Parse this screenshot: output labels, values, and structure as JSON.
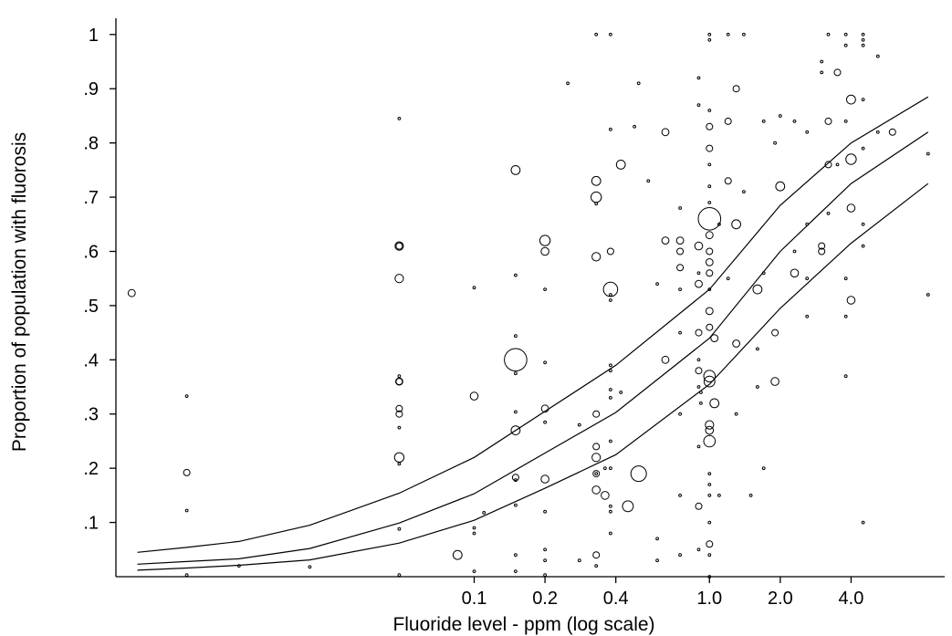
{
  "chart_data": {
    "type": "scatter",
    "title": "",
    "xlabel": "Fluoride level - ppm (log scale)",
    "ylabel": "Proportion of population with fluorosis",
    "x_scale": "log",
    "xlim": [
      0.003,
      10
    ],
    "ylim": [
      0,
      1.03
    ],
    "x_ticks": [
      {
        "value": 0.1,
        "label": "0.1"
      },
      {
        "value": 0.2,
        "label": "0.2"
      },
      {
        "value": 0.4,
        "label": "0.4"
      },
      {
        "value": 1.0,
        "label": "1.0"
      },
      {
        "value": 2.0,
        "label": "2.0"
      },
      {
        "value": 4.0,
        "label": "4.0"
      }
    ],
    "y_ticks": [
      {
        "value": 0.1,
        "label": ".1"
      },
      {
        "value": 0.2,
        "label": ".2"
      },
      {
        "value": 0.3,
        "label": ".3"
      },
      {
        "value": 0.4,
        "label": ".4"
      },
      {
        "value": 0.5,
        "label": ".5"
      },
      {
        "value": 0.6,
        "label": ".6"
      },
      {
        "value": 0.7,
        "label": ".7"
      },
      {
        "value": 0.8,
        "label": ".8"
      },
      {
        "value": 0.9,
        "label": ".9"
      },
      {
        "value": 1.0,
        "label": "1"
      }
    ],
    "grid": false,
    "marker_style": "hollow circles, area proportional to weight",
    "points": [
      {
        "x": 0.0035,
        "y": 0.523,
        "w": 3
      },
      {
        "x": 0.006,
        "y": 0.333,
        "w": 1
      },
      {
        "x": 0.006,
        "y": 0.192,
        "w": 2
      },
      {
        "x": 0.006,
        "y": 0.122,
        "w": 1
      },
      {
        "x": 0.006,
        "y": 0.003,
        "w": 1
      },
      {
        "x": 0.01,
        "y": 0.02,
        "w": 1
      },
      {
        "x": 0.02,
        "y": 0.018,
        "w": 1
      },
      {
        "x": 0.048,
        "y": 0.845,
        "w": 1
      },
      {
        "x": 0.048,
        "y": 0.61,
        "w": 5
      },
      {
        "x": 0.048,
        "y": 0.61,
        "w": 2
      },
      {
        "x": 0.048,
        "y": 0.55,
        "w": 5
      },
      {
        "x": 0.048,
        "y": 0.37,
        "w": 1
      },
      {
        "x": 0.048,
        "y": 0.36,
        "w": 3
      },
      {
        "x": 0.048,
        "y": 0.36,
        "w": 2
      },
      {
        "x": 0.048,
        "y": 0.31,
        "w": 2
      },
      {
        "x": 0.048,
        "y": 0.3,
        "w": 2
      },
      {
        "x": 0.048,
        "y": 0.275,
        "w": 1
      },
      {
        "x": 0.048,
        "y": 0.22,
        "w": 7
      },
      {
        "x": 0.048,
        "y": 0.208,
        "w": 1
      },
      {
        "x": 0.048,
        "y": 0.088,
        "w": 1
      },
      {
        "x": 0.048,
        "y": 0.003,
        "w": 1
      },
      {
        "x": 0.085,
        "y": 0.04,
        "w": 6
      },
      {
        "x": 0.1,
        "y": 0.533,
        "w": 1
      },
      {
        "x": 0.1,
        "y": 0.333,
        "w": 4
      },
      {
        "x": 0.1,
        "y": 0.09,
        "w": 1
      },
      {
        "x": 0.1,
        "y": 0.08,
        "w": 1
      },
      {
        "x": 0.1,
        "y": 0.01,
        "w": 1
      },
      {
        "x": 0.11,
        "y": 0.118,
        "w": 1
      },
      {
        "x": 0.15,
        "y": 0.75,
        "w": 6
      },
      {
        "x": 0.15,
        "y": 0.556,
        "w": 1
      },
      {
        "x": 0.15,
        "y": 0.444,
        "w": 1
      },
      {
        "x": 0.15,
        "y": 0.4,
        "w": 60
      },
      {
        "x": 0.15,
        "y": 0.375,
        "w": 1
      },
      {
        "x": 0.15,
        "y": 0.304,
        "w": 1
      },
      {
        "x": 0.15,
        "y": 0.27,
        "w": 6
      },
      {
        "x": 0.15,
        "y": 0.183,
        "w": 2
      },
      {
        "x": 0.15,
        "y": 0.178,
        "w": 1
      },
      {
        "x": 0.15,
        "y": 0.132,
        "w": 1
      },
      {
        "x": 0.15,
        "y": 0.04,
        "w": 1
      },
      {
        "x": 0.15,
        "y": 0.01,
        "w": 1
      },
      {
        "x": 0.2,
        "y": 0.62,
        "w": 9
      },
      {
        "x": 0.2,
        "y": 0.6,
        "w": 4
      },
      {
        "x": 0.2,
        "y": 0.53,
        "w": 1
      },
      {
        "x": 0.2,
        "y": 0.395,
        "w": 1
      },
      {
        "x": 0.2,
        "y": 0.31,
        "w": 3
      },
      {
        "x": 0.2,
        "y": 0.285,
        "w": 1
      },
      {
        "x": 0.2,
        "y": 0.18,
        "w": 4
      },
      {
        "x": 0.2,
        "y": 0.12,
        "w": 1
      },
      {
        "x": 0.2,
        "y": 0.05,
        "w": 1
      },
      {
        "x": 0.2,
        "y": 0.03,
        "w": 1
      },
      {
        "x": 0.2,
        "y": 0.003,
        "w": 1
      },
      {
        "x": 0.25,
        "y": 0.91,
        "w": 1
      },
      {
        "x": 0.28,
        "y": 0.28,
        "w": 1
      },
      {
        "x": 0.28,
        "y": 0.03,
        "w": 1
      },
      {
        "x": 0.33,
        "y": 1.0,
        "w": 1
      },
      {
        "x": 0.33,
        "y": 0.73,
        "w": 6
      },
      {
        "x": 0.33,
        "y": 0.7,
        "w": 9
      },
      {
        "x": 0.33,
        "y": 0.688,
        "w": 1
      },
      {
        "x": 0.33,
        "y": 0.59,
        "w": 5
      },
      {
        "x": 0.33,
        "y": 0.3,
        "w": 2
      },
      {
        "x": 0.33,
        "y": 0.24,
        "w": 2
      },
      {
        "x": 0.33,
        "y": 0.22,
        "w": 5
      },
      {
        "x": 0.33,
        "y": 0.19,
        "w": 2
      },
      {
        "x": 0.33,
        "y": 0.19,
        "w": 1
      },
      {
        "x": 0.33,
        "y": 0.16,
        "w": 4
      },
      {
        "x": 0.33,
        "y": 0.04,
        "w": 2
      },
      {
        "x": 0.33,
        "y": 0.02,
        "w": 1
      },
      {
        "x": 0.36,
        "y": 0.2,
        "w": 1
      },
      {
        "x": 0.36,
        "y": 0.15,
        "w": 4
      },
      {
        "x": 0.38,
        "y": 1.0,
        "w": 1
      },
      {
        "x": 0.38,
        "y": 0.825,
        "w": 1
      },
      {
        "x": 0.38,
        "y": 0.6,
        "w": 2
      },
      {
        "x": 0.38,
        "y": 0.53,
        "w": 20
      },
      {
        "x": 0.38,
        "y": 0.52,
        "w": 1
      },
      {
        "x": 0.38,
        "y": 0.51,
        "w": 1
      },
      {
        "x": 0.38,
        "y": 0.39,
        "w": 1
      },
      {
        "x": 0.38,
        "y": 0.38,
        "w": 1
      },
      {
        "x": 0.38,
        "y": 0.345,
        "w": 1
      },
      {
        "x": 0.38,
        "y": 0.33,
        "w": 1
      },
      {
        "x": 0.38,
        "y": 0.25,
        "w": 1
      },
      {
        "x": 0.38,
        "y": 0.2,
        "w": 1
      },
      {
        "x": 0.38,
        "y": 0.13,
        "w": 1
      },
      {
        "x": 0.38,
        "y": 0.12,
        "w": 1
      },
      {
        "x": 0.38,
        "y": 0.08,
        "w": 1
      },
      {
        "x": 0.42,
        "y": 0.76,
        "w": 6
      },
      {
        "x": 0.42,
        "y": 0.34,
        "w": 1
      },
      {
        "x": 0.45,
        "y": 0.13,
        "w": 10
      },
      {
        "x": 0.48,
        "y": 0.83,
        "w": 1
      },
      {
        "x": 0.5,
        "y": 0.91,
        "w": 1
      },
      {
        "x": 0.5,
        "y": 0.19,
        "w": 25
      },
      {
        "x": 0.55,
        "y": 0.73,
        "w": 1
      },
      {
        "x": 0.6,
        "y": 0.54,
        "w": 1
      },
      {
        "x": 0.6,
        "y": 0.07,
        "w": 1
      },
      {
        "x": 0.6,
        "y": 0.03,
        "w": 1
      },
      {
        "x": 0.65,
        "y": 0.82,
        "w": 3
      },
      {
        "x": 0.65,
        "y": 0.62,
        "w": 3
      },
      {
        "x": 0.65,
        "y": 0.4,
        "w": 3
      },
      {
        "x": 0.75,
        "y": 0.68,
        "w": 1
      },
      {
        "x": 0.75,
        "y": 0.62,
        "w": 3
      },
      {
        "x": 0.75,
        "y": 0.6,
        "w": 2
      },
      {
        "x": 0.75,
        "y": 0.57,
        "w": 2
      },
      {
        "x": 0.75,
        "y": 0.53,
        "w": 1
      },
      {
        "x": 0.75,
        "y": 0.45,
        "w": 1
      },
      {
        "x": 0.75,
        "y": 0.3,
        "w": 1
      },
      {
        "x": 0.75,
        "y": 0.15,
        "w": 1
      },
      {
        "x": 0.75,
        "y": 0.04,
        "w": 1
      },
      {
        "x": 0.9,
        "y": 0.92,
        "w": 1
      },
      {
        "x": 0.9,
        "y": 0.87,
        "w": 1
      },
      {
        "x": 0.9,
        "y": 0.61,
        "w": 4
      },
      {
        "x": 0.9,
        "y": 0.56,
        "w": 1
      },
      {
        "x": 0.9,
        "y": 0.54,
        "w": 3
      },
      {
        "x": 0.9,
        "y": 0.45,
        "w": 2
      },
      {
        "x": 0.9,
        "y": 0.4,
        "w": 1
      },
      {
        "x": 0.9,
        "y": 0.38,
        "w": 2
      },
      {
        "x": 0.9,
        "y": 0.35,
        "w": 1
      },
      {
        "x": 0.9,
        "y": 0.24,
        "w": 1
      },
      {
        "x": 0.9,
        "y": 0.13,
        "w": 2
      },
      {
        "x": 0.9,
        "y": 0.05,
        "w": 1
      },
      {
        "x": 0.92,
        "y": 0.34,
        "w": 1
      },
      {
        "x": 0.92,
        "y": 0.32,
        "w": 1
      },
      {
        "x": 1.0,
        "y": 1.0,
        "w": 1
      },
      {
        "x": 1.0,
        "y": 0.99,
        "w": 1
      },
      {
        "x": 1.0,
        "y": 0.86,
        "w": 1
      },
      {
        "x": 1.0,
        "y": 0.83,
        "w": 2
      },
      {
        "x": 1.0,
        "y": 0.79,
        "w": 2
      },
      {
        "x": 1.0,
        "y": 0.76,
        "w": 1
      },
      {
        "x": 1.0,
        "y": 0.72,
        "w": 1
      },
      {
        "x": 1.0,
        "y": 0.69,
        "w": 1
      },
      {
        "x": 1.0,
        "y": 0.66,
        "w": 60
      },
      {
        "x": 1.0,
        "y": 0.63,
        "w": 3
      },
      {
        "x": 1.0,
        "y": 0.6,
        "w": 2
      },
      {
        "x": 1.0,
        "y": 0.58,
        "w": 3
      },
      {
        "x": 1.0,
        "y": 0.56,
        "w": 2
      },
      {
        "x": 1.0,
        "y": 0.53,
        "w": 1
      },
      {
        "x": 1.0,
        "y": 0.49,
        "w": 3
      },
      {
        "x": 1.0,
        "y": 0.46,
        "w": 2
      },
      {
        "x": 1.0,
        "y": 0.37,
        "w": 12
      },
      {
        "x": 1.0,
        "y": 0.36,
        "w": 10
      },
      {
        "x": 1.0,
        "y": 0.28,
        "w": 5
      },
      {
        "x": 1.0,
        "y": 0.27,
        "w": 4
      },
      {
        "x": 1.0,
        "y": 0.25,
        "w": 12
      },
      {
        "x": 1.0,
        "y": 0.19,
        "w": 1
      },
      {
        "x": 1.0,
        "y": 0.17,
        "w": 1
      },
      {
        "x": 1.0,
        "y": 0.15,
        "w": 1
      },
      {
        "x": 1.0,
        "y": 0.1,
        "w": 1
      },
      {
        "x": 1.0,
        "y": 0.06,
        "w": 2
      },
      {
        "x": 1.0,
        "y": 0.04,
        "w": 1
      },
      {
        "x": 1.0,
        "y": 0.0,
        "w": 1
      },
      {
        "x": 1.05,
        "y": 0.44,
        "w": 3
      },
      {
        "x": 1.05,
        "y": 0.32,
        "w": 6
      },
      {
        "x": 1.1,
        "y": 0.65,
        "w": 1
      },
      {
        "x": 1.1,
        "y": 0.15,
        "w": 1
      },
      {
        "x": 1.2,
        "y": 1.0,
        "w": 1
      },
      {
        "x": 1.2,
        "y": 0.84,
        "w": 2
      },
      {
        "x": 1.2,
        "y": 0.73,
        "w": 2
      },
      {
        "x": 1.2,
        "y": 0.55,
        "w": 1
      },
      {
        "x": 1.3,
        "y": 0.9,
        "w": 2
      },
      {
        "x": 1.3,
        "y": 0.65,
        "w": 6
      },
      {
        "x": 1.3,
        "y": 0.43,
        "w": 3
      },
      {
        "x": 1.3,
        "y": 0.3,
        "w": 1
      },
      {
        "x": 1.4,
        "y": 1.0,
        "w": 1
      },
      {
        "x": 1.4,
        "y": 0.71,
        "w": 1
      },
      {
        "x": 1.5,
        "y": 0.15,
        "w": 1
      },
      {
        "x": 1.6,
        "y": 0.53,
        "w": 6
      },
      {
        "x": 1.6,
        "y": 0.42,
        "w": 1
      },
      {
        "x": 1.6,
        "y": 0.35,
        "w": 1
      },
      {
        "x": 1.7,
        "y": 0.84,
        "w": 1
      },
      {
        "x": 1.7,
        "y": 0.56,
        "w": 1
      },
      {
        "x": 1.7,
        "y": 0.2,
        "w": 1
      },
      {
        "x": 1.9,
        "y": 0.8,
        "w": 1
      },
      {
        "x": 1.9,
        "y": 0.45,
        "w": 2
      },
      {
        "x": 1.9,
        "y": 0.36,
        "w": 4
      },
      {
        "x": 2.0,
        "y": 0.85,
        "w": 1
      },
      {
        "x": 2.0,
        "y": 0.72,
        "w": 6
      },
      {
        "x": 2.3,
        "y": 0.84,
        "w": 1
      },
      {
        "x": 2.3,
        "y": 0.56,
        "w": 4
      },
      {
        "x": 2.3,
        "y": 0.6,
        "w": 1
      },
      {
        "x": 2.6,
        "y": 0.82,
        "w": 1
      },
      {
        "x": 2.6,
        "y": 0.65,
        "w": 1
      },
      {
        "x": 2.6,
        "y": 0.55,
        "w": 1
      },
      {
        "x": 2.6,
        "y": 0.48,
        "w": 1
      },
      {
        "x": 3.0,
        "y": 0.95,
        "w": 1
      },
      {
        "x": 3.0,
        "y": 0.93,
        "w": 1
      },
      {
        "x": 3.0,
        "y": 0.61,
        "w": 2
      },
      {
        "x": 3.0,
        "y": 0.6,
        "w": 2
      },
      {
        "x": 3.2,
        "y": 1.0,
        "w": 1
      },
      {
        "x": 3.2,
        "y": 0.84,
        "w": 2
      },
      {
        "x": 3.2,
        "y": 0.76,
        "w": 2
      },
      {
        "x": 3.2,
        "y": 0.67,
        "w": 1
      },
      {
        "x": 3.5,
        "y": 0.93,
        "w": 2
      },
      {
        "x": 3.5,
        "y": 0.76,
        "w": 1
      },
      {
        "x": 3.8,
        "y": 1.0,
        "w": 1
      },
      {
        "x": 3.8,
        "y": 0.98,
        "w": 1
      },
      {
        "x": 3.8,
        "y": 0.84,
        "w": 1
      },
      {
        "x": 3.8,
        "y": 0.55,
        "w": 1
      },
      {
        "x": 3.8,
        "y": 0.48,
        "w": 1
      },
      {
        "x": 3.8,
        "y": 0.37,
        "w": 1
      },
      {
        "x": 4.0,
        "y": 0.88,
        "w": 6
      },
      {
        "x": 4.0,
        "y": 0.77,
        "w": 9
      },
      {
        "x": 4.0,
        "y": 0.68,
        "w": 4
      },
      {
        "x": 4.0,
        "y": 0.51,
        "w": 4
      },
      {
        "x": 4.5,
        "y": 1.0,
        "w": 1
      },
      {
        "x": 4.5,
        "y": 0.99,
        "w": 1
      },
      {
        "x": 4.5,
        "y": 0.98,
        "w": 1
      },
      {
        "x": 4.5,
        "y": 0.88,
        "w": 1
      },
      {
        "x": 4.5,
        "y": 0.79,
        "w": 1
      },
      {
        "x": 4.5,
        "y": 0.65,
        "w": 1
      },
      {
        "x": 4.5,
        "y": 0.61,
        "w": 1
      },
      {
        "x": 4.5,
        "y": 0.1,
        "w": 1
      },
      {
        "x": 5.2,
        "y": 0.96,
        "w": 1
      },
      {
        "x": 5.2,
        "y": 0.82,
        "w": 1
      },
      {
        "x": 6.0,
        "y": 0.82,
        "w": 2
      },
      {
        "x": 8.5,
        "y": 0.78,
        "w": 1
      },
      {
        "x": 8.5,
        "y": 0.52,
        "w": 1
      }
    ],
    "series": [
      {
        "x": [
          0.0037,
          0.006,
          0.01,
          0.02,
          0.048,
          0.1,
          0.2,
          0.4,
          1.0,
          2.0,
          4.0,
          8.5
        ],
        "values": [
          0.045,
          0.054,
          0.065,
          0.095,
          0.154,
          0.22,
          0.305,
          0.39,
          0.53,
          0.685,
          0.8,
          0.885
        ]
      },
      {
        "x": [
          0.0037,
          0.006,
          0.01,
          0.02,
          0.048,
          0.1,
          0.2,
          0.4,
          1.0,
          2.0,
          4.0,
          8.5
        ],
        "values": [
          0.023,
          0.028,
          0.033,
          0.052,
          0.099,
          0.153,
          0.228,
          0.303,
          0.44,
          0.6,
          0.725,
          0.82
        ]
      },
      {
        "x": [
          0.0037,
          0.006,
          0.01,
          0.02,
          0.048,
          0.1,
          0.2,
          0.4,
          1.0,
          2.0,
          4.0,
          8.5
        ],
        "values": [
          0.012,
          0.016,
          0.021,
          0.031,
          0.062,
          0.104,
          0.163,
          0.225,
          0.355,
          0.495,
          0.615,
          0.725
        ]
      }
    ]
  }
}
